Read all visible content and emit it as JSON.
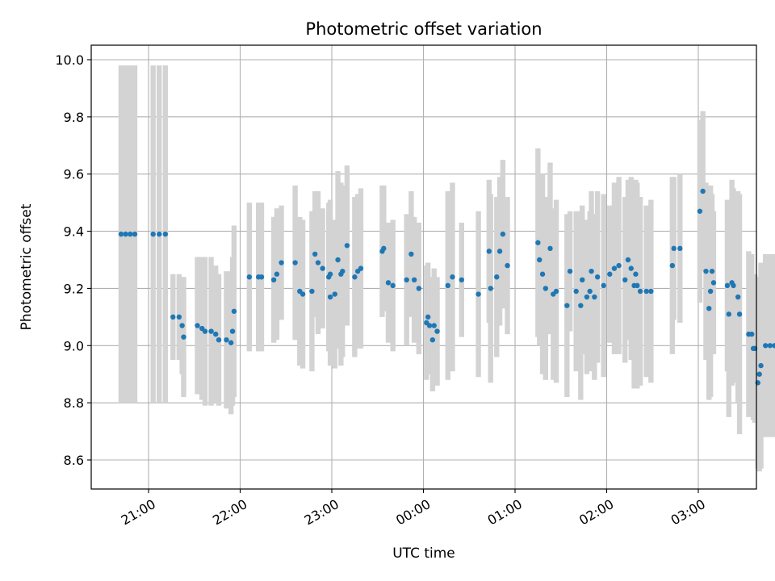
{
  "chart_data": {
    "type": "scatter",
    "title": "Photometric offset variation",
    "xlabel": "UTC time",
    "ylabel": "Photometric offset",
    "x_ticks": [
      "21:00",
      "22:00",
      "23:00",
      "00:00",
      "01:00",
      "02:00",
      "03:00"
    ],
    "y_ticks": [
      "8.6",
      "8.8",
      "9.0",
      "9.2",
      "9.4",
      "9.6",
      "9.8",
      "10.0"
    ],
    "x_unit": "minutes after 21:00 UTC",
    "xlim": [
      -37,
      395
    ],
    "ylim": [
      8.49,
      10.05
    ],
    "grid": true,
    "colors": {
      "point": "#1f77b4",
      "errorbar": "#d3d3d3"
    },
    "points": [
      [
        -18,
        9.39,
        0.59
      ],
      [
        -15,
        9.39,
        0.59
      ],
      [
        -12,
        9.39,
        0.59
      ],
      [
        -9,
        9.39,
        0.59
      ],
      [
        3,
        9.39,
        0.59
      ],
      [
        7,
        9.39,
        0.59
      ],
      [
        11,
        9.39,
        0.59
      ],
      [
        16,
        9.1,
        0.15
      ],
      [
        20,
        9.1,
        0.15
      ],
      [
        22,
        9.07,
        0.17
      ],
      [
        23,
        9.03,
        0.21
      ],
      [
        32,
        9.07,
        0.24
      ],
      [
        35,
        9.06,
        0.25
      ],
      [
        37,
        9.05,
        0.26
      ],
      [
        41,
        9.05,
        0.26
      ],
      [
        44,
        9.04,
        0.24
      ],
      [
        46,
        9.02,
        0.23
      ],
      [
        51,
        9.02,
        0.24
      ],
      [
        54,
        9.01,
        0.25
      ],
      [
        55,
        9.05,
        0.26
      ],
      [
        56,
        9.12,
        0.3
      ],
      [
        66,
        9.24,
        0.26
      ],
      [
        72,
        9.24,
        0.26
      ],
      [
        74,
        9.24,
        0.26
      ],
      [
        82,
        9.23,
        0.22
      ],
      [
        84,
        9.25,
        0.23
      ],
      [
        87,
        9.29,
        0.2
      ],
      [
        96,
        9.29,
        0.27
      ],
      [
        99,
        9.19,
        0.26
      ],
      [
        101,
        9.18,
        0.26
      ],
      [
        107,
        9.19,
        0.28
      ],
      [
        109,
        9.32,
        0.22
      ],
      [
        111,
        9.29,
        0.25
      ],
      [
        114,
        9.27,
        0.21
      ],
      [
        118,
        9.24,
        0.26
      ],
      [
        119,
        9.25,
        0.26
      ],
      [
        119,
        9.17,
        0.24
      ],
      [
        122,
        9.18,
        0.26
      ],
      [
        124,
        9.3,
        0.31
      ],
      [
        126,
        9.25,
        0.32
      ],
      [
        127,
        9.26,
        0.3
      ],
      [
        130,
        9.35,
        0.28
      ],
      [
        135,
        9.24,
        0.28
      ],
      [
        137,
        9.26,
        0.27
      ],
      [
        139,
        9.27,
        0.28
      ],
      [
        153,
        9.33,
        0.23
      ],
      [
        154,
        9.34,
        0.22
      ],
      [
        157,
        9.22,
        0.21
      ],
      [
        160,
        9.21,
        0.23
      ],
      [
        169,
        9.23,
        0.23
      ],
      [
        172,
        9.32,
        0.22
      ],
      [
        174,
        9.23,
        0.22
      ],
      [
        177,
        9.2,
        0.23
      ],
      [
        182,
        9.08,
        0.2
      ],
      [
        183,
        9.1,
        0.19
      ],
      [
        184,
        9.07,
        0.17
      ],
      [
        186,
        9.02,
        0.18
      ],
      [
        187,
        9.07,
        0.2
      ],
      [
        189,
        9.05,
        0.19
      ],
      [
        196,
        9.21,
        0.33
      ],
      [
        199,
        9.24,
        0.33
      ],
      [
        205,
        9.23,
        0.2
      ],
      [
        216,
        9.18,
        0.29
      ],
      [
        223,
        9.33,
        0.25
      ],
      [
        224,
        9.2,
        0.33
      ],
      [
        228,
        9.24,
        0.28
      ],
      [
        230,
        9.33,
        0.26
      ],
      [
        232,
        9.39,
        0.26
      ],
      [
        235,
        9.28,
        0.24
      ],
      [
        255,
        9.36,
        0.33
      ],
      [
        256,
        9.3,
        0.3
      ],
      [
        258,
        9.25,
        0.35
      ],
      [
        260,
        9.2,
        0.32
      ],
      [
        263,
        9.34,
        0.3
      ],
      [
        265,
        9.18,
        0.3
      ],
      [
        267,
        9.19,
        0.32
      ],
      [
        274,
        9.14,
        0.32
      ],
      [
        276,
        9.26,
        0.21
      ],
      [
        280,
        9.19,
        0.28
      ],
      [
        283,
        9.14,
        0.33
      ],
      [
        284,
        9.23,
        0.26
      ],
      [
        287,
        9.17,
        0.27
      ],
      [
        289,
        9.19,
        0.28
      ],
      [
        290,
        9.26,
        0.28
      ],
      [
        292,
        9.17,
        0.29
      ],
      [
        294,
        9.24,
        0.3
      ],
      [
        298,
        9.21,
        0.32
      ],
      [
        302,
        9.25,
        0.24
      ],
      [
        305,
        9.27,
        0.3
      ],
      [
        308,
        9.28,
        0.31
      ],
      [
        312,
        9.23,
        0.29
      ],
      [
        314,
        9.3,
        0.28
      ],
      [
        316,
        9.27,
        0.32
      ],
      [
        318,
        9.21,
        0.36
      ],
      [
        319,
        9.25,
        0.33
      ],
      [
        320,
        9.21,
        0.36
      ],
      [
        322,
        9.19,
        0.33
      ],
      [
        326,
        9.19,
        0.3
      ],
      [
        329,
        9.19,
        0.32
      ],
      [
        343,
        9.28,
        0.31
      ],
      [
        344,
        9.34,
        0.25
      ],
      [
        348,
        9.34,
        0.26
      ],
      [
        361,
        9.47,
        0.32
      ],
      [
        363,
        9.54,
        0.28
      ],
      [
        365,
        9.26,
        0.31
      ],
      [
        367,
        9.13,
        0.32
      ],
      [
        368,
        9.19,
        0.37
      ],
      [
        369,
        9.26,
        0.27
      ],
      [
        370,
        9.22,
        0.25
      ],
      [
        379,
        9.21,
        0.3
      ],
      [
        380,
        9.11,
        0.36
      ],
      [
        382,
        9.22,
        0.36
      ],
      [
        383,
        9.21,
        0.34
      ],
      [
        386,
        9.17,
        0.37
      ],
      [
        387,
        9.11,
        0.42
      ],
      [
        393,
        9.04,
        0.29
      ],
      [
        395,
        9.04,
        0.28
      ],
      [
        396,
        8.99,
        0.25
      ],
      [
        397,
        8.99,
        0.26
      ],
      [
        399,
        8.87,
        0.3
      ],
      [
        400,
        8.9,
        0.34
      ],
      [
        401,
        8.93,
        0.36
      ],
      [
        404,
        9.0,
        0.32
      ],
      [
        407,
        9.0,
        0.32
      ],
      [
        410,
        9.0,
        0.32
      ],
      [
        413,
        9.0,
        0.32
      ]
    ]
  }
}
